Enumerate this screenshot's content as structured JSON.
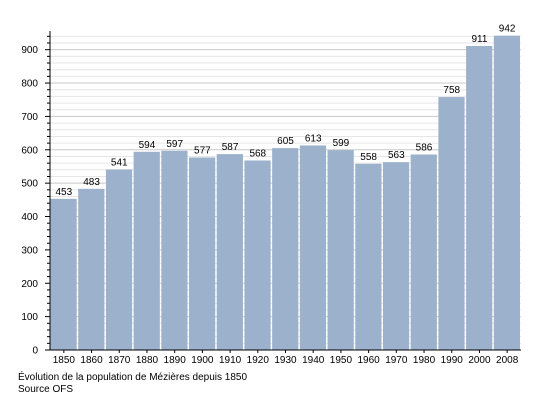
{
  "chart_data": {
    "type": "bar",
    "categories": [
      "1850",
      "1860",
      "1870",
      "1880",
      "1890",
      "1900",
      "1910",
      "1920",
      "1930",
      "1940",
      "1950",
      "1960",
      "1970",
      "1980",
      "1990",
      "2000",
      "2008"
    ],
    "values": [
      453,
      483,
      541,
      594,
      597,
      577,
      587,
      568,
      605,
      613,
      599,
      558,
      563,
      586,
      758,
      911,
      942
    ],
    "ylim": [
      0,
      950
    ],
    "yticks": [
      0,
      100,
      200,
      300,
      400,
      500,
      600,
      700,
      800,
      900
    ],
    "ylabel": "",
    "xlabel": "",
    "grid": true,
    "legend": "none",
    "bar_color": "#9bb1cc",
    "grid_color": "#dcdcdc"
  },
  "caption": {
    "line1": "Évolution de la population de Mézières depuis 1850",
    "line2": "Source OFS"
  }
}
